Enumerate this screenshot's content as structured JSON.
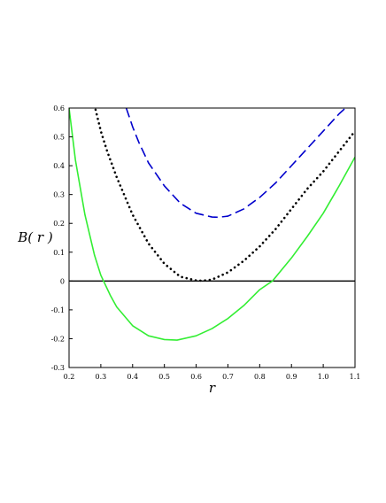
{
  "chart_data": {
    "type": "line",
    "title": "",
    "xlabel": "r",
    "ylabel": "B( r )",
    "xlim": [
      0.2,
      1.1
    ],
    "ylim": [
      -0.3,
      0.6
    ],
    "xticks": [
      "0.2",
      "0.3",
      "0.4",
      "0.5",
      "0.6",
      "0.7",
      "0.8",
      "0.9",
      "1.0",
      "1.1"
    ],
    "yticks": [
      "-0.3",
      "-0.2",
      "-0.1",
      "0",
      "0.1",
      "0.2",
      "0.3",
      "0.4",
      "0.5",
      "0.6"
    ],
    "grid": false,
    "legend": "none",
    "reference_line": {
      "y": 0,
      "color": "#000000"
    },
    "series": [
      {
        "style": "dashed",
        "color": "#0000cc",
        "x": [
          0.38,
          0.4,
          0.42,
          0.45,
          0.5,
          0.55,
          0.6,
          0.65,
          0.67,
          0.7,
          0.75,
          0.8,
          0.85,
          0.9,
          0.95,
          1.0,
          1.05,
          1.08
        ],
        "y": [
          0.6,
          0.535,
          0.48,
          0.41,
          0.33,
          0.27,
          0.235,
          0.222,
          0.221,
          0.225,
          0.25,
          0.29,
          0.34,
          0.4,
          0.46,
          0.52,
          0.58,
          0.61
        ]
      },
      {
        "style": "dotted",
        "color": "#000000",
        "x": [
          0.28,
          0.3,
          0.32,
          0.35,
          0.4,
          0.45,
          0.5,
          0.55,
          0.6,
          0.62,
          0.65,
          0.7,
          0.75,
          0.8,
          0.85,
          0.9,
          0.95,
          1.0,
          1.05,
          1.1
        ],
        "y": [
          0.61,
          0.52,
          0.45,
          0.36,
          0.23,
          0.13,
          0.06,
          0.015,
          0.002,
          0.001,
          0.005,
          0.03,
          0.07,
          0.12,
          0.18,
          0.25,
          0.32,
          0.38,
          0.45,
          0.52
        ]
      },
      {
        "style": "solid",
        "color": "#33ee33",
        "x": [
          0.2,
          0.22,
          0.25,
          0.28,
          0.3,
          0.33,
          0.35,
          0.4,
          0.45,
          0.5,
          0.54,
          0.6,
          0.65,
          0.7,
          0.75,
          0.8,
          0.84,
          0.9,
          0.95,
          1.0,
          1.05,
          1.1
        ],
        "y": [
          0.6,
          0.42,
          0.23,
          0.09,
          0.02,
          -0.05,
          -0.09,
          -0.155,
          -0.19,
          -0.203,
          -0.205,
          -0.19,
          -0.165,
          -0.13,
          -0.085,
          -0.03,
          0.0,
          0.08,
          0.155,
          0.235,
          0.33,
          0.43
        ]
      }
    ]
  }
}
